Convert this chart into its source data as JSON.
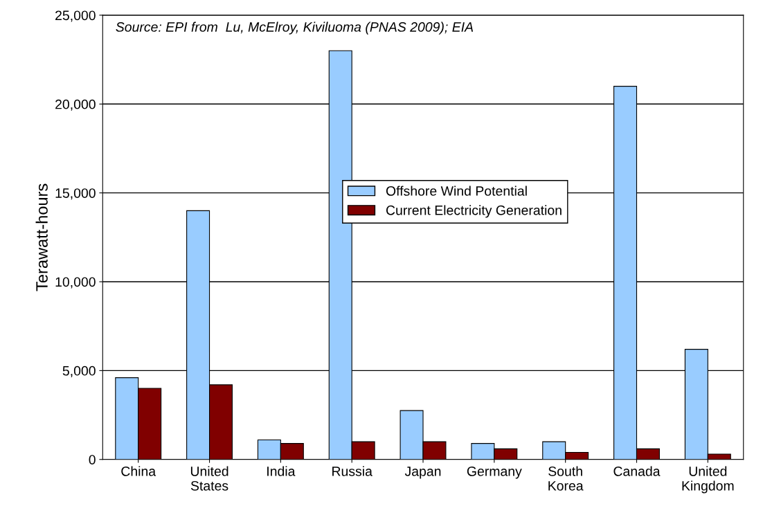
{
  "chart_data": {
    "type": "bar",
    "ylabel": "Terawatt-hours",
    "annotations": [
      "Source: EPI from  Lu, McElroy, Kiviluoma (PNAS 2009); EIA"
    ],
    "categories": [
      "China",
      "United\nStates",
      "India",
      "Russia",
      "Japan",
      "Germany",
      "South\nKorea",
      "Canada",
      "United\nKingdom"
    ],
    "series": [
      {
        "name": "Offshore Wind Potential",
        "color": "#99ccff",
        "values": [
          4600,
          14000,
          1100,
          23000,
          2750,
          900,
          1000,
          21000,
          6200
        ]
      },
      {
        "name": "Current Electricity Generation",
        "color": "#800000",
        "values": [
          4000,
          4200,
          900,
          1000,
          1000,
          600,
          400,
          600,
          300
        ]
      }
    ],
    "ylim": [
      0,
      25000
    ],
    "yticks": [
      {
        "value": 0,
        "label": "0"
      },
      {
        "value": 5000,
        "label": "5,000"
      },
      {
        "value": 10000,
        "label": "10,000"
      },
      {
        "value": 15000,
        "label": "15,000"
      },
      {
        "value": 20000,
        "label": "20,000"
      },
      {
        "value": 25000,
        "label": "25,000"
      }
    ],
    "grid": "y",
    "legend": "center"
  }
}
